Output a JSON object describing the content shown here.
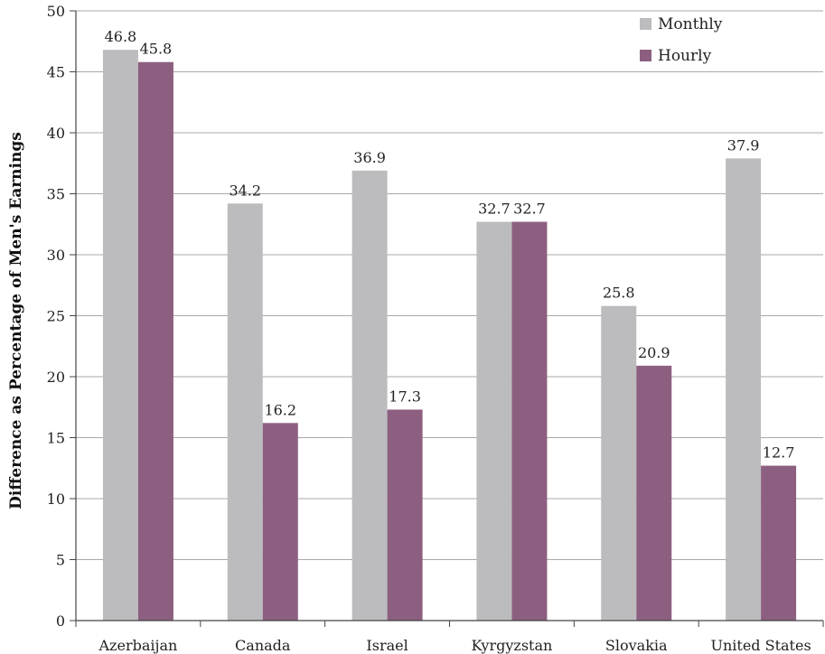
{
  "chart_data": {
    "type": "bar",
    "title": "",
    "xlabel": "",
    "ylabel": "Difference as Percentage of Men's Earnings",
    "ylim": [
      0,
      50
    ],
    "yticks": [
      0,
      5,
      10,
      15,
      20,
      25,
      30,
      35,
      40,
      45,
      50
    ],
    "grid": true,
    "legend_position": "top-right",
    "categories": [
      "Azerbaijan",
      "Canada",
      "Israel",
      "Kyrgyzstan",
      "Slovakia",
      "United States"
    ],
    "series": [
      {
        "name": "Monthly",
        "color": "#bcbcbf",
        "values": [
          46.8,
          34.2,
          36.9,
          32.7,
          25.8,
          37.9
        ],
        "labels": [
          "46.8",
          "34.2",
          "36.9",
          "32.7",
          "25.8",
          "37.9"
        ]
      },
      {
        "name": "Hourly",
        "color": "#8c5f80",
        "values": [
          45.8,
          16.2,
          17.3,
          32.7,
          20.9,
          12.7
        ],
        "labels": [
          "45.8",
          "16.2",
          "17.3",
          "32.7",
          "20.9",
          "12.7"
        ]
      }
    ]
  }
}
